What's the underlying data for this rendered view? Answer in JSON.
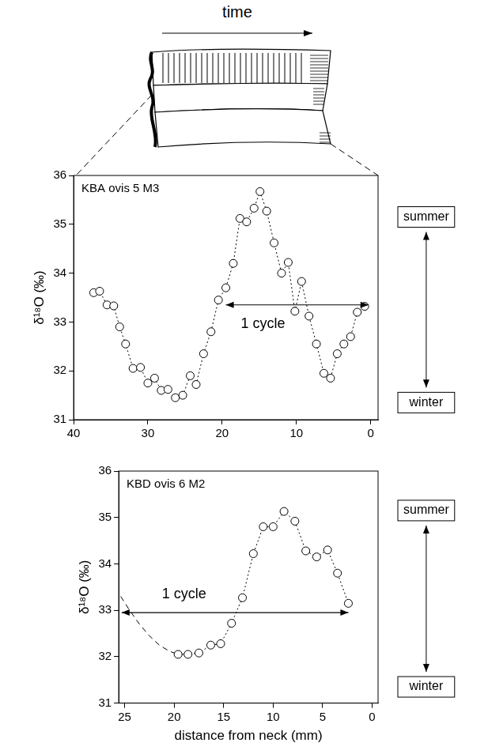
{
  "header": {
    "label": "time"
  },
  "chart_data": [
    {
      "type": "line",
      "title": "KBA ovis 5 M3",
      "y_label": "δ¹⁸O (‰)",
      "series": [
        {
          "color": "#000000",
          "marker": "circle",
          "line_style": "dotted",
          "x": [
            37.3,
            36.5,
            35.5,
            34.6,
            33.8,
            33.0,
            32.0,
            31.0,
            30.0,
            29.1,
            28.2,
            27.3,
            26.3,
            25.3,
            24.3,
            23.5,
            22.5,
            21.5,
            20.5,
            19.5,
            18.5,
            17.6,
            16.7,
            15.7,
            14.9,
            14.0,
            13.0,
            12.0,
            11.1,
            10.2,
            9.3,
            8.3,
            7.3,
            6.3,
            5.4,
            4.5,
            3.6,
            2.7,
            1.8,
            0.8
          ],
          "values": [
            33.6,
            33.63,
            33.35,
            33.33,
            32.9,
            32.55,
            32.05,
            32.07,
            31.75,
            31.85,
            31.6,
            31.62,
            31.45,
            31.5,
            31.9,
            31.72,
            32.35,
            32.8,
            33.45,
            33.7,
            34.2,
            35.12,
            35.05,
            35.33,
            35.67,
            35.27,
            34.62,
            34.0,
            34.22,
            33.22,
            33.83,
            33.12,
            32.55,
            31.95,
            31.85,
            32.35,
            32.55,
            32.7,
            33.2,
            33.32
          ]
        }
      ],
      "xlim": [
        40,
        -1
      ],
      "xticks": [
        40,
        30,
        20,
        10,
        0
      ],
      "ylim": [
        31,
        36
      ],
      "yticks": [
        31,
        32,
        33,
        34,
        35,
        36
      ],
      "grid": false,
      "annotations": [
        {
          "text": "1 cycle",
          "x": 14.5,
          "y": 32.95,
          "arrow_from": 19.5,
          "arrow_to": 0.3,
          "arrow_y": 33.35
        }
      ],
      "side_labels": [
        "summer",
        "winter"
      ]
    },
    {
      "type": "line",
      "title": "KBD ovis 6 M2",
      "y_label": "δ¹⁸O (‰)",
      "x_label": "distance from neck (mm)",
      "series": [
        {
          "color": "#000000",
          "marker": "circle",
          "line_style": "dotted",
          "x": [
            19.6,
            18.6,
            17.5,
            16.3,
            15.3,
            14.2,
            13.1,
            12.0,
            11.0,
            10.0,
            8.9,
            7.8,
            6.7,
            5.6,
            4.5,
            3.5,
            2.4
          ],
          "values": [
            32.05,
            32.05,
            32.08,
            32.25,
            32.28,
            32.72,
            33.27,
            34.22,
            34.8,
            34.8,
            35.13,
            34.92,
            34.28,
            34.15,
            34.3,
            33.8,
            33.15
          ]
        },
        {
          "color": "#000000",
          "marker": "none",
          "line_style": "dashed",
          "x": [
            25.4,
            24.5,
            23.5,
            22.5,
            21.5,
            20.5,
            19.6
          ],
          "values": [
            33.3,
            33.0,
            32.7,
            32.45,
            32.25,
            32.12,
            32.05
          ]
        }
      ],
      "xlim": [
        25.6,
        -0.6
      ],
      "xticks": [
        25,
        20,
        15,
        10,
        5,
        0
      ],
      "ylim": [
        31,
        36
      ],
      "yticks": [
        31,
        32,
        33,
        34,
        35,
        36
      ],
      "grid": false,
      "annotations": [
        {
          "text": "1 cycle",
          "x": 19.0,
          "y": 33.35,
          "arrow_from": 25.3,
          "arrow_to": 2.4,
          "arrow_y": 32.95
        }
      ],
      "side_labels": [
        "summer",
        "winter"
      ]
    }
  ]
}
